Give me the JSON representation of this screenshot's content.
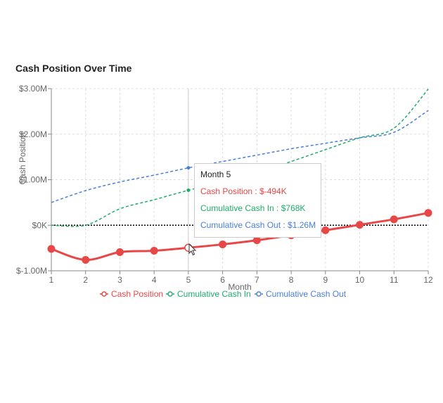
{
  "chart_data": {
    "type": "line",
    "title": "Cash Position Over Time",
    "xlabel": "Month",
    "ylabel": "Cash Position",
    "x": [
      1,
      2,
      3,
      4,
      5,
      6,
      7,
      8,
      9,
      10,
      11,
      12
    ],
    "xlim": [
      1,
      12
    ],
    "ylim": [
      -1000000,
      3000000
    ],
    "y_ticks": [
      -1000000,
      0,
      1000000,
      2000000,
      3000000
    ],
    "y_tick_labels": [
      "$-1.00M",
      "$0K",
      "$1.00M",
      "$2.00M",
      "$3.00M"
    ],
    "grid": true,
    "reference_line": 0,
    "legend_position": "bottom",
    "series": [
      {
        "name": "Cash Position",
        "color": "#e84747",
        "style": "solid",
        "values": [
          -520000,
          -760000,
          -590000,
          -560000,
          -494000,
          -420000,
          -330000,
          -220000,
          -110000,
          10000,
          130000,
          270000
        ]
      },
      {
        "name": "Cumulative Cash In",
        "color": "#1fab6b",
        "style": "dashed",
        "values": [
          0,
          0,
          360000,
          560000,
          768000,
          950000,
          1150000,
          1400000,
          1660000,
          1920000,
          2130000,
          2990000
        ]
      },
      {
        "name": "Cumulative Cash Out",
        "color": "#4a7fd6",
        "style": "dashed",
        "values": [
          500000,
          760000,
          950000,
          1100000,
          1260000,
          1400000,
          1540000,
          1680000,
          1800000,
          1920000,
          2040000,
          2520000
        ]
      }
    ]
  },
  "tooltip": {
    "title": "Month 5",
    "cash_position": "Cash Position : $-494K",
    "cash_in": "Cumulative Cash In : $768K",
    "cash_out": "Cumulative Cash Out : $1.26M",
    "active_index": 4
  }
}
